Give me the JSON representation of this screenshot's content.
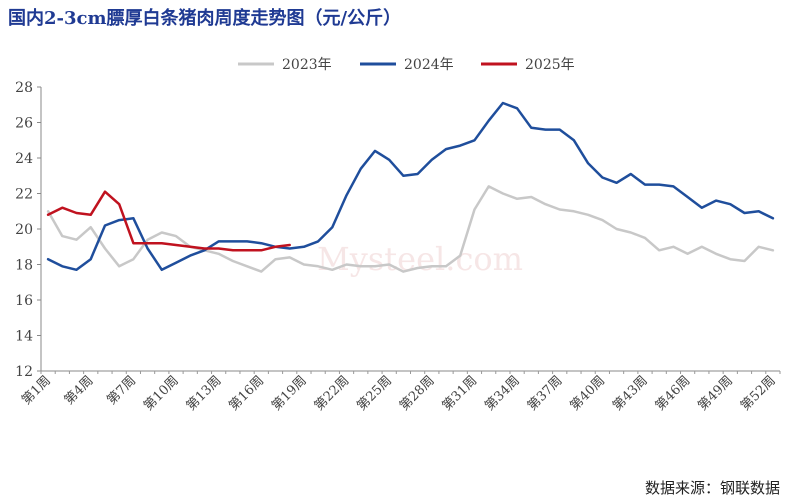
{
  "title": "国内2-3cm膘厚白条猪肉周度走势图（元/公斤）",
  "source": "数据来源：钢联数据",
  "watermark": "Mysteel.com",
  "chart_data": {
    "type": "line",
    "title": "国内2-3cm膘厚白条猪肉周度走势图（元/公斤）",
    "ylim": [
      12,
      28
    ],
    "yticks": [
      12,
      14,
      16,
      18,
      20,
      22,
      24,
      26,
      28
    ],
    "xlabels": [
      "第1周",
      "第4周",
      "第7周",
      "第10周",
      "第13周",
      "第16周",
      "第19周",
      "第22周",
      "第25周",
      "第28周",
      "第31周",
      "第34周",
      "第37周",
      "第40周",
      "第43周",
      "第46周",
      "第49周",
      "第52周"
    ],
    "legend_position": "top",
    "series": [
      {
        "name": "2023年",
        "color": "#c8c8c8",
        "values": [
          21.0,
          19.6,
          19.4,
          20.1,
          18.9,
          17.9,
          18.3,
          19.4,
          19.8,
          19.6,
          19.0,
          18.8,
          18.6,
          18.2,
          17.9,
          17.6,
          18.3,
          18.4,
          18.0,
          17.9,
          17.7,
          18.0,
          17.9,
          17.9,
          18.0,
          17.6,
          17.8,
          17.9,
          17.9,
          18.5,
          21.1,
          22.4,
          22.0,
          21.7,
          21.8,
          21.4,
          21.1,
          21.0,
          20.8,
          20.5,
          20.0,
          19.8,
          19.5,
          18.8,
          19.0,
          18.6,
          19.0,
          18.6,
          18.3,
          18.2,
          19.0,
          18.8
        ]
      },
      {
        "name": "2024年",
        "color": "#1f4e9c",
        "values": [
          18.3,
          17.9,
          17.7,
          18.3,
          20.2,
          20.5,
          20.6,
          18.9,
          17.7,
          18.1,
          18.5,
          18.8,
          19.3,
          19.3,
          19.3,
          19.2,
          19.0,
          18.9,
          19.0,
          19.3,
          20.1,
          21.9,
          23.4,
          24.4,
          23.9,
          23.0,
          23.1,
          23.9,
          24.5,
          24.7,
          25.0,
          26.1,
          27.1,
          26.8,
          25.7,
          25.6,
          25.6,
          25.0,
          23.7,
          22.9,
          22.6,
          23.1,
          22.5,
          22.5,
          22.4,
          21.8,
          21.2,
          21.6,
          21.4,
          20.9,
          21.0,
          20.6
        ]
      },
      {
        "name": "2025年",
        "color": "#c0121f",
        "values": [
          20.8,
          21.2,
          20.9,
          20.8,
          22.1,
          21.4,
          19.2,
          19.2,
          19.2,
          19.1,
          19.0,
          18.9,
          18.9,
          18.8,
          18.8,
          18.8,
          19.0,
          19.1
        ]
      }
    ]
  }
}
